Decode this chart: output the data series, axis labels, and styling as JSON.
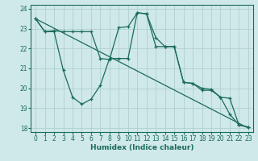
{
  "xlabel": "Humidex (Indice chaleur)",
  "bg_color": "#cfe8e8",
  "line_color": "#1a6b5a",
  "grid_color": "#b0d0d0",
  "xlim": [
    -0.5,
    23.5
  ],
  "ylim": [
    17.8,
    24.2
  ],
  "yticks": [
    18,
    19,
    20,
    21,
    22,
    23,
    24
  ],
  "xticks": [
    0,
    1,
    2,
    3,
    4,
    5,
    6,
    7,
    8,
    9,
    10,
    11,
    12,
    13,
    14,
    15,
    16,
    17,
    18,
    19,
    20,
    21,
    22,
    23
  ],
  "line1_x": [
    0,
    1,
    2,
    3,
    4,
    5,
    6,
    7,
    8,
    9,
    10,
    11,
    12,
    13,
    14,
    15,
    16,
    17,
    18,
    19,
    20,
    21,
    22,
    23
  ],
  "line1_y": [
    23.5,
    22.85,
    22.9,
    22.85,
    22.85,
    22.85,
    22.85,
    21.5,
    21.45,
    23.05,
    23.1,
    23.8,
    23.75,
    22.55,
    22.1,
    22.1,
    20.3,
    20.25,
    20.0,
    19.95,
    19.55,
    19.5,
    18.15,
    18.05
  ],
  "line2_x": [
    0,
    1,
    2,
    3,
    4,
    5,
    6,
    7,
    8,
    9,
    10,
    11,
    12,
    13,
    14,
    15,
    16,
    17,
    18,
    19,
    20,
    21,
    22,
    23
  ],
  "line2_y": [
    23.5,
    22.85,
    22.85,
    20.9,
    19.55,
    19.2,
    19.45,
    20.15,
    21.5,
    21.5,
    21.5,
    23.8,
    23.75,
    22.1,
    22.1,
    22.1,
    20.3,
    20.25,
    19.9,
    19.9,
    19.55,
    18.7,
    18.15,
    18.05
  ],
  "line3_x": [
    0,
    23
  ],
  "line3_y": [
    23.5,
    18.0
  ]
}
